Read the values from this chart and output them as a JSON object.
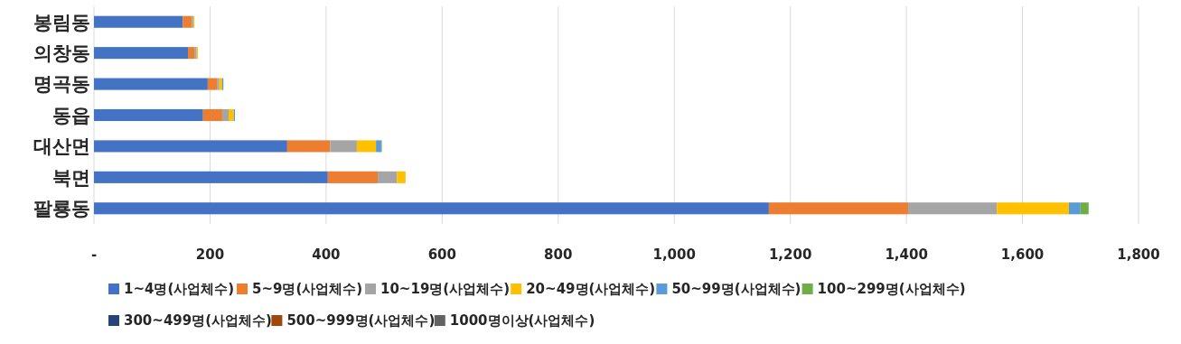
{
  "chart_data": {
    "type": "bar",
    "orientation": "horizontal",
    "stacked": true,
    "categories": [
      "봉림동",
      "의창동",
      "명곡동",
      "동읍",
      "대산면",
      "북면",
      "팔룡동"
    ],
    "series": [
      {
        "name": "1~4명(사업체수)",
        "color": "#4472c4",
        "values": [
          153,
          162,
          196,
          188,
          333,
          403,
          1163
        ]
      },
      {
        "name": "5~9명(사업체수)",
        "color": "#ed7d31",
        "values": [
          15,
          11,
          16,
          33,
          74,
          86,
          240
        ]
      },
      {
        "name": "10~19명(사업체수)",
        "color": "#a5a5a5",
        "values": [
          3,
          4,
          4,
          11,
          46,
          33,
          153
        ]
      },
      {
        "name": "20~49명(사업체수)",
        "color": "#ffc000",
        "values": [
          2,
          2,
          5,
          9,
          33,
          15,
          124
        ]
      },
      {
        "name": "50~99명(사업체수)",
        "color": "#5b9bd5",
        "values": [
          0,
          0,
          2,
          2,
          9,
          0,
          20
        ]
      },
      {
        "name": "100~299명(사업체수)",
        "color": "#70ad47",
        "values": [
          0,
          0,
          0,
          0,
          1,
          0,
          14
        ]
      },
      {
        "name": "300~499명(사업체수)",
        "color": "#264478",
        "values": [
          0,
          0,
          0,
          0,
          0,
          0,
          0
        ]
      },
      {
        "name": "500~999명(사업체수)",
        "color": "#9e480e",
        "values": [
          0,
          0,
          0,
          0,
          0,
          0,
          0
        ]
      },
      {
        "name": "1000명이상(사업체수)",
        "color": "#636363",
        "values": [
          0,
          0,
          0,
          0,
          0,
          0,
          0
        ]
      }
    ],
    "xlim": [
      0,
      1800
    ],
    "xticks": [
      {
        "value": 0,
        "label": "-"
      },
      200,
      400,
      600,
      800,
      {
        "value": 1000,
        "label": "1,000"
      },
      {
        "value": 1200,
        "label": "1,200"
      },
      {
        "value": 1400,
        "label": "1,400"
      },
      {
        "value": 1600,
        "label": "1,600"
      },
      {
        "value": 1800,
        "label": "1,800"
      }
    ],
    "grid": "x",
    "legend": "bottom"
  }
}
